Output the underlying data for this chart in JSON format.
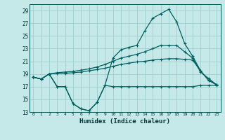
{
  "xlabel": "Humidex (Indice chaleur)",
  "bg_color": "#c5e8e8",
  "grid_color": "#9ecece",
  "line_color": "#006060",
  "xlim": [
    -0.5,
    23.5
  ],
  "ylim": [
    13,
    30
  ],
  "yticks": [
    13,
    15,
    17,
    19,
    21,
    23,
    25,
    27,
    29
  ],
  "xticks": [
    0,
    1,
    2,
    3,
    4,
    5,
    6,
    7,
    8,
    9,
    10,
    11,
    12,
    13,
    14,
    15,
    16,
    17,
    18,
    19,
    20,
    21,
    22,
    23
  ],
  "series_top_x": [
    0,
    1,
    2,
    3,
    4,
    5,
    6,
    7,
    8,
    9,
    10,
    11,
    12,
    13,
    14,
    15,
    16,
    17,
    18,
    19,
    20,
    21,
    22,
    23
  ],
  "series_top_y": [
    18.5,
    18.2,
    19.0,
    17.0,
    17.0,
    14.3,
    13.5,
    13.2,
    14.5,
    17.2,
    21.5,
    22.8,
    23.2,
    23.5,
    25.8,
    27.8,
    28.5,
    29.2,
    27.2,
    23.8,
    21.8,
    19.5,
    18.0,
    17.3
  ],
  "series1_x": [
    0,
    1,
    2,
    3,
    4,
    5,
    6,
    7,
    8,
    9,
    10,
    11,
    12,
    13,
    14,
    15,
    16,
    17,
    18,
    19,
    20,
    21,
    22,
    23
  ],
  "series1_y": [
    18.5,
    18.2,
    19.0,
    19.2,
    19.3,
    19.4,
    19.6,
    19.8,
    20.1,
    20.5,
    21.0,
    21.5,
    21.8,
    22.1,
    22.5,
    23.0,
    23.5,
    23.5,
    23.5,
    22.5,
    21.5,
    19.3,
    18.3,
    17.3
  ],
  "series2_x": [
    0,
    1,
    2,
    3,
    4,
    5,
    6,
    7,
    8,
    9,
    10,
    11,
    12,
    13,
    14,
    15,
    16,
    17,
    18,
    19,
    20,
    21,
    22,
    23
  ],
  "series2_y": [
    18.5,
    18.2,
    19.0,
    19.1,
    19.1,
    19.2,
    19.3,
    19.5,
    19.7,
    19.9,
    20.2,
    20.5,
    20.7,
    20.9,
    21.0,
    21.2,
    21.3,
    21.4,
    21.4,
    21.3,
    21.2,
    19.5,
    18.0,
    17.3
  ],
  "series3_x": [
    0,
    1,
    2,
    3,
    4,
    5,
    6,
    7,
    8,
    9,
    10,
    11,
    12,
    13,
    14,
    15,
    16,
    17,
    18,
    19,
    20,
    21,
    22,
    23
  ],
  "series3_y": [
    18.5,
    18.2,
    19.0,
    17.0,
    17.0,
    14.3,
    13.5,
    13.2,
    14.5,
    17.2,
    17.0,
    17.0,
    17.0,
    17.0,
    17.0,
    17.0,
    17.0,
    17.0,
    17.0,
    17.0,
    17.0,
    17.2,
    17.2,
    17.2
  ]
}
